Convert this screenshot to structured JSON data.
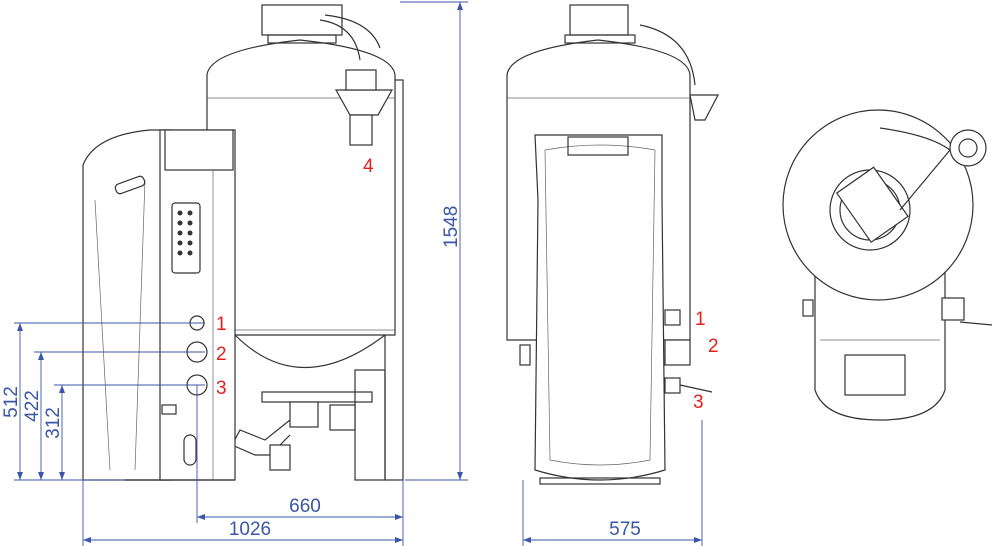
{
  "dimensions": {
    "height_total": "1548",
    "height_conn1": "512",
    "height_conn2": "422",
    "height_conn3": "312",
    "depth_tank": "660",
    "depth_total": "1026",
    "width_total": "575"
  },
  "side_view_labels": [
    "1",
    "2",
    "3",
    "4"
  ],
  "front_view_labels": [
    "1",
    "2",
    "3"
  ],
  "colors": {
    "dimension": "#3b55a8",
    "callout": "#e3201b",
    "outline": "#333333"
  }
}
